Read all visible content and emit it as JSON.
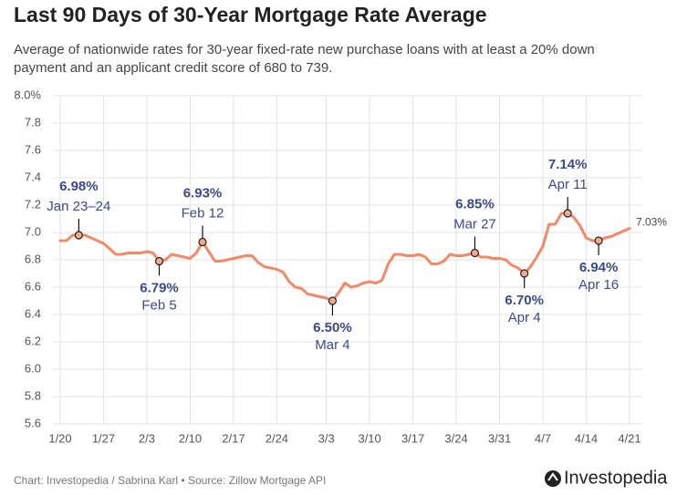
{
  "chart_data": {
    "type": "line",
    "title": "Last 90 Days of 30-Year Mortgage Rate Average",
    "subtitle_lines": [
      "Average of nationwide rates for 30-year fixed-rate new purchase loans with at least a 20% down",
      "payment and an applicant credit score of 680 to 739."
    ],
    "source": "Chart: Investopedia / Sabrina Karl • Source: Zillow Mortgage API",
    "brand": "Investopedia",
    "x": [
      "1/20",
      "1/21",
      "1/22",
      "1/23",
      "1/24",
      "1/25",
      "1/26",
      "1/27",
      "1/28",
      "1/29",
      "1/30",
      "1/31",
      "2/1",
      "2/2",
      "2/3",
      "2/4",
      "2/5",
      "2/6",
      "2/7",
      "2/8",
      "2/9",
      "2/10",
      "2/11",
      "2/12",
      "2/13",
      "2/14",
      "2/15",
      "2/16",
      "2/17",
      "2/18",
      "2/19",
      "2/20",
      "2/21",
      "2/22",
      "2/23",
      "2/24",
      "2/25",
      "2/26",
      "2/27",
      "2/28",
      "2/29",
      "3/1",
      "3/2",
      "3/3",
      "3/4",
      "3/5",
      "3/6",
      "3/7",
      "3/8",
      "3/9",
      "3/10",
      "3/11",
      "3/12",
      "3/13",
      "3/14",
      "3/15",
      "3/16",
      "3/17",
      "3/18",
      "3/19",
      "3/20",
      "3/21",
      "3/22",
      "3/23",
      "3/24",
      "3/25",
      "3/26",
      "3/27",
      "3/28",
      "3/29",
      "3/30",
      "3/31",
      "4/1",
      "4/2",
      "4/3",
      "4/4",
      "4/5",
      "4/6",
      "4/7",
      "4/8",
      "4/9",
      "4/10",
      "4/11",
      "4/12",
      "4/13",
      "4/14",
      "4/15",
      "4/16",
      "4/17",
      "4/18",
      "4/19",
      "4/20",
      "4/21"
    ],
    "series": [
      {
        "name": "30-Year Mortgage Rate Average",
        "color": "#f08a68",
        "values": [
          6.94,
          6.94,
          6.98,
          6.98,
          6.98,
          6.96,
          6.94,
          6.92,
          6.88,
          6.84,
          6.84,
          6.85,
          6.85,
          6.85,
          6.86,
          6.85,
          6.79,
          6.8,
          6.84,
          6.83,
          6.82,
          6.81,
          6.85,
          6.93,
          6.86,
          6.79,
          6.79,
          6.8,
          6.81,
          6.82,
          6.83,
          6.83,
          6.78,
          6.75,
          6.74,
          6.73,
          6.71,
          6.64,
          6.6,
          6.59,
          6.55,
          6.54,
          6.53,
          6.52,
          6.5,
          6.56,
          6.63,
          6.6,
          6.61,
          6.63,
          6.64,
          6.63,
          6.65,
          6.77,
          6.84,
          6.84,
          6.83,
          6.83,
          6.84,
          6.82,
          6.77,
          6.77,
          6.79,
          6.84,
          6.83,
          6.83,
          6.84,
          6.85,
          6.82,
          6.82,
          6.81,
          6.81,
          6.8,
          6.76,
          6.74,
          6.7,
          6.75,
          6.82,
          6.9,
          7.06,
          7.06,
          7.14,
          7.14,
          7.11,
          7.05,
          6.96,
          6.94,
          6.94,
          6.96,
          6.97,
          6.99,
          7.01,
          7.03
        ]
      }
    ],
    "end_label": "7.03%",
    "annotations": [
      {
        "x": "1/23",
        "value": 6.98,
        "label": "6.98%",
        "date": "Jan 23–24",
        "position": "above"
      },
      {
        "x": "2/5",
        "value": 6.79,
        "label": "6.79%",
        "date": "Feb 5",
        "position": "below"
      },
      {
        "x": "2/12",
        "value": 6.93,
        "label": "6.93%",
        "date": "Feb 12",
        "position": "above"
      },
      {
        "x": "3/4",
        "value": 6.5,
        "label": "6.50%",
        "date": "Mar 4",
        "position": "below"
      },
      {
        "x": "3/27",
        "value": 6.85,
        "label": "6.85%",
        "date": "Mar 27",
        "position": "above"
      },
      {
        "x": "4/4",
        "value": 6.7,
        "label": "6.70%",
        "date": "Apr 4",
        "position": "below"
      },
      {
        "x": "4/11",
        "value": 7.14,
        "label": "7.14%",
        "date": "Apr 11",
        "position": "above"
      },
      {
        "x": "4/16",
        "value": 6.94,
        "label": "6.94%",
        "date": "Apr 16",
        "position": "below"
      }
    ],
    "ylim": [
      5.6,
      8.0
    ],
    "yticks": [
      {
        "value": 5.6,
        "label": "5.6"
      },
      5.8,
      {
        "value": 6.0,
        "label": "6.0"
      },
      6.2,
      6.4,
      6.6,
      6.8,
      {
        "value": 7.0,
        "label": "7.0"
      },
      7.2,
      7.4,
      7.6,
      7.8,
      {
        "value": 8.0,
        "label": "8.0%"
      }
    ],
    "xticks": [
      "1/20",
      "1/27",
      "2/3",
      "2/10",
      "2/17",
      "2/24",
      "3/3",
      "3/10",
      "3/17",
      "3/24",
      "3/31",
      "4/7",
      "4/14",
      "4/21"
    ],
    "grid": true
  }
}
